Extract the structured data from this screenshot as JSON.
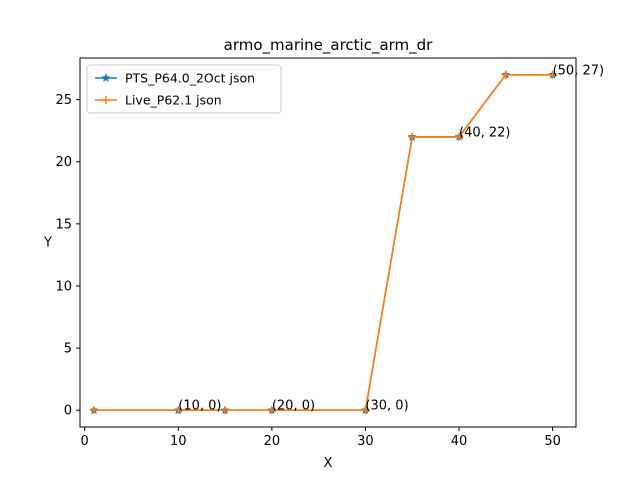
{
  "chart_data": {
    "type": "line",
    "title": "armo_marine_arctic_arm_dr",
    "xlabel": "X",
    "ylabel": "Y",
    "xlim": [
      -0.5,
      52.5
    ],
    "ylim": [
      -1.35,
      28.35
    ],
    "xticks": [
      0,
      10,
      20,
      30,
      40,
      50
    ],
    "yticks": [
      0,
      5,
      10,
      15,
      20,
      25
    ],
    "legend_position": "top-left",
    "grid": false,
    "series": [
      {
        "name": "PTS_P64.0_2Oct json",
        "color": "#1f77b4",
        "marker": "star",
        "x": [
          1,
          10,
          15,
          20,
          30,
          35,
          40,
          45,
          50
        ],
        "y": [
          0,
          0,
          0,
          0,
          0,
          22,
          22,
          27,
          27
        ]
      },
      {
        "name": "Live_P62.1 json",
        "color": "#ff7f0e",
        "marker": "plus",
        "x": [
          1,
          10,
          15,
          20,
          30,
          35,
          40,
          45,
          50
        ],
        "y": [
          0,
          0,
          0,
          0,
          0,
          22,
          22,
          27,
          27
        ]
      }
    ],
    "annotations": [
      {
        "text": "(10, 0)",
        "x": 10,
        "y": 0
      },
      {
        "text": "(20, 0)",
        "x": 20,
        "y": 0
      },
      {
        "text": "(30, 0)",
        "x": 30,
        "y": 0
      },
      {
        "text": "(40, 22)",
        "x": 40,
        "y": 22
      },
      {
        "text": "(50, 27)",
        "x": 50,
        "y": 27
      }
    ]
  }
}
